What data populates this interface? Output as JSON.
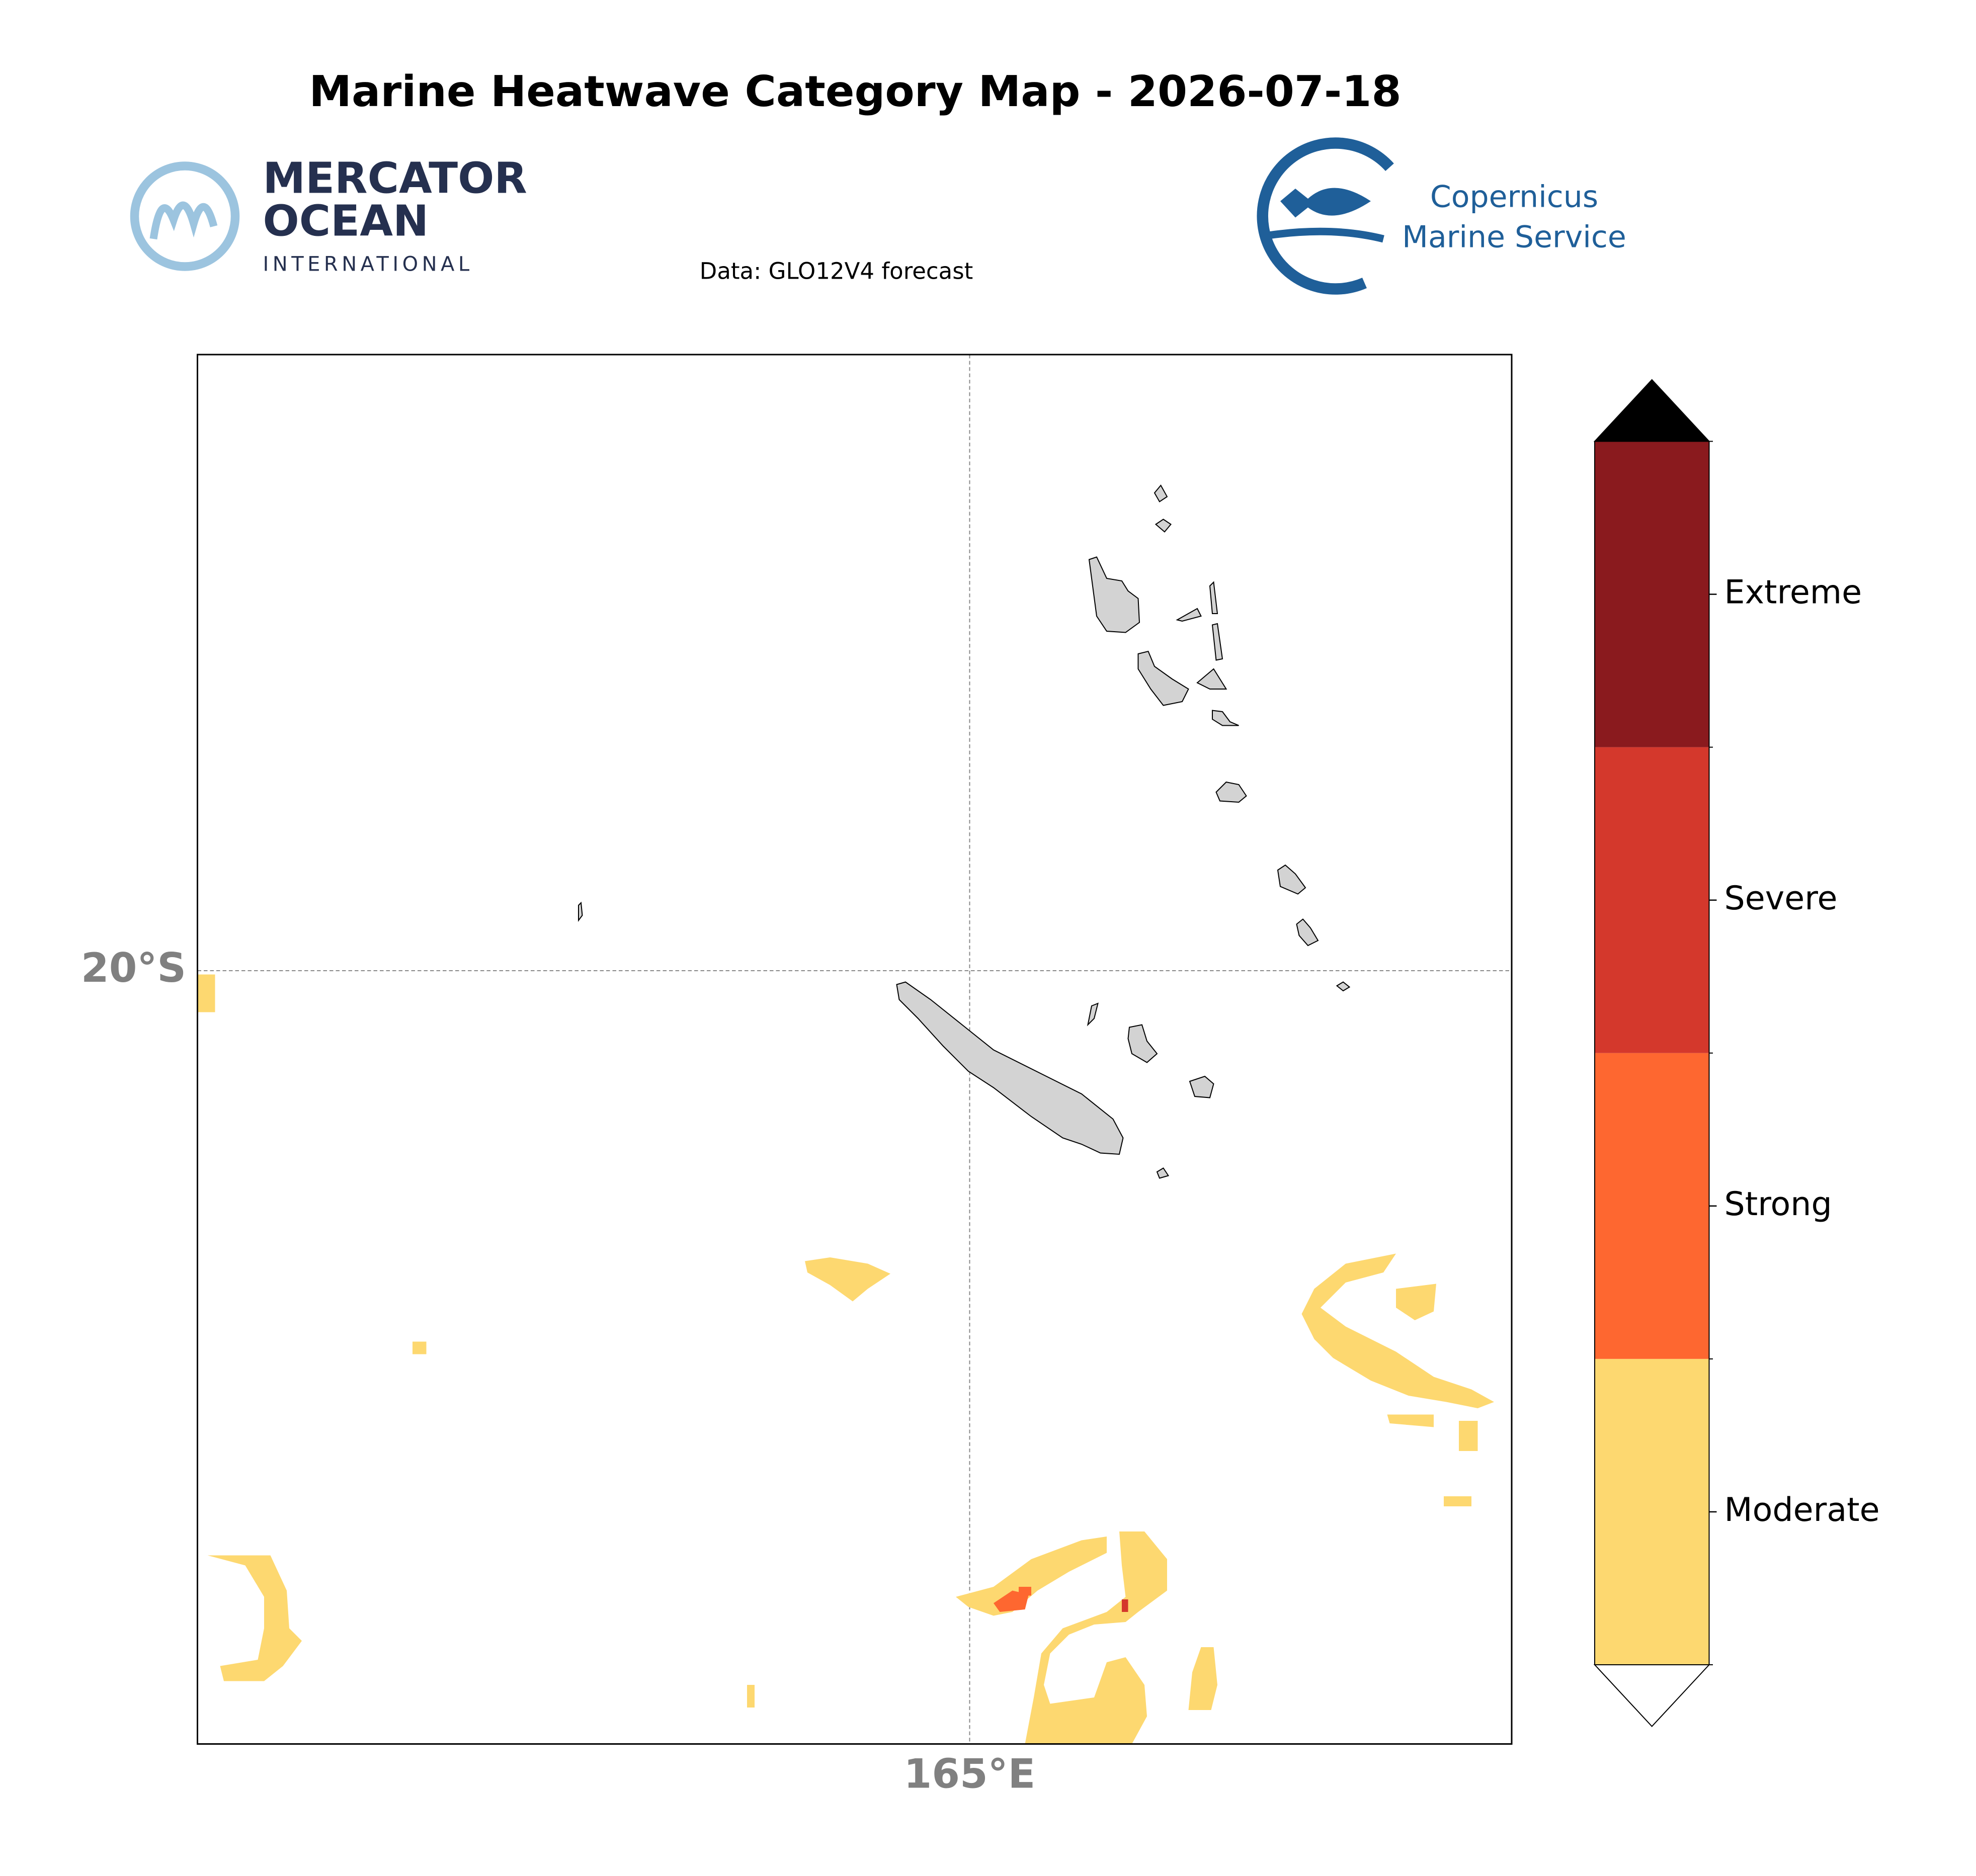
{
  "title": "Marine Heatwave Category Map - 2026-07-18",
  "logos": {
    "left": [
      "MERCATOR",
      "OCEAN",
      "INTERNATIONAL"
    ],
    "right": [
      "Copernicus",
      "Marine Service"
    ]
  },
  "data_source": "Data: GLO12V4 forecast",
  "map": {
    "lat_label": "20°S",
    "lon_label": "165°E"
  },
  "colorbar": {
    "over_color": "#000000",
    "under_color": "#ffffff",
    "categories": [
      {
        "label": "Moderate",
        "color": "#fdd870"
      },
      {
        "label": "Strong",
        "color": "#fe6730"
      },
      {
        "label": "Severe",
        "color": "#d4382c"
      },
      {
        "label": "Extreme",
        "color": "#8a1a1e"
      }
    ]
  }
}
